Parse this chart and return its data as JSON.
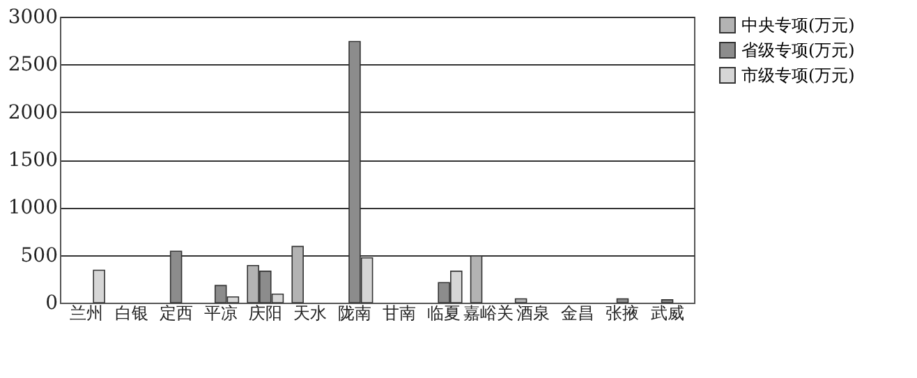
{
  "chart_data": {
    "type": "bar",
    "categories": [
      "兰州",
      "白银",
      "定西",
      "平凉",
      "庆阳",
      "天水",
      "陇南",
      "甘南",
      "临夏",
      "嘉峪关",
      "酒泉",
      "金昌",
      "张掖",
      "武威"
    ],
    "series": [
      {
        "name": "中央专项(万元)",
        "color": "#b3b3b3",
        "values": [
          null,
          null,
          null,
          null,
          390,
          590,
          null,
          null,
          null,
          490,
          40,
          null,
          null,
          null
        ]
      },
      {
        "name": "省级专项(万元)",
        "color": "#8c8c8c",
        "values": [
          null,
          null,
          540,
          180,
          330,
          null,
          2740,
          null,
          210,
          null,
          null,
          null,
          40,
          30
        ]
      },
      {
        "name": "市级专项(万元)",
        "color": "#d6d6d6",
        "values": [
          340,
          null,
          null,
          60,
          90,
          null,
          470,
          null,
          330,
          null,
          null,
          null,
          null,
          null
        ]
      }
    ],
    "ylim": [
      0,
      3000
    ],
    "yticks": [
      0,
      500,
      1000,
      1500,
      2000,
      2500,
      3000
    ],
    "grid": "y",
    "legend": "right"
  }
}
